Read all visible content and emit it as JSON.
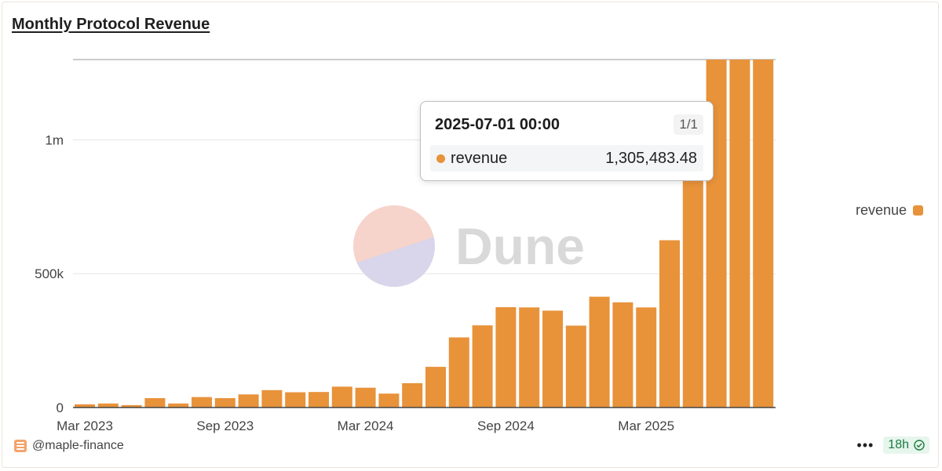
{
  "title": "Monthly Protocol Revenue",
  "watermark": "Dune",
  "legend_label": "revenue",
  "tooltip": {
    "date": "2025-07-01 00:00",
    "count": "1/1",
    "series": "revenue",
    "value": "1,305,483.48"
  },
  "footer": {
    "author": "@maple-finance",
    "refresh": "18h"
  },
  "colors": {
    "bar": "#e8923a",
    "grid": "#e6e6e6",
    "axis": "#444444"
  },
  "chart_data": {
    "type": "bar",
    "title": "Monthly Protocol Revenue",
    "xlabel": "",
    "ylabel": "",
    "ylim": [
      0,
      1300000
    ],
    "yticks": [
      {
        "value": 0,
        "label": "0"
      },
      {
        "value": 500000,
        "label": "500k"
      },
      {
        "value": 1000000,
        "label": "1m"
      }
    ],
    "xticks": [
      "Mar 2023",
      "Sep 2023",
      "Mar 2024",
      "Sep 2024",
      "Mar 2025"
    ],
    "grid": true,
    "legend_position": "right",
    "categories": [
      "2023-03",
      "2023-04",
      "2023-05",
      "2023-06",
      "2023-07",
      "2023-08",
      "2023-09",
      "2023-10",
      "2023-11",
      "2023-12",
      "2024-01",
      "2024-02",
      "2024-03",
      "2024-04",
      "2024-05",
      "2024-06",
      "2024-07",
      "2024-08",
      "2024-09",
      "2024-10",
      "2024-11",
      "2024-12",
      "2025-01",
      "2025-02",
      "2025-03",
      "2025-04",
      "2025-05",
      "2025-06",
      "2025-07",
      "2025-08"
    ],
    "series": [
      {
        "name": "revenue",
        "values": [
          12000,
          15000,
          9000,
          35000,
          15000,
          39000,
          35000,
          49000,
          65000,
          57000,
          58000,
          78000,
          74000,
          52000,
          91000,
          152000,
          262000,
          307000,
          375000,
          374000,
          362000,
          306000,
          414000,
          393000,
          374000,
          625000,
          1000000,
          1305483.48,
          1305483.48,
          1305483.48
        ]
      }
    ]
  }
}
